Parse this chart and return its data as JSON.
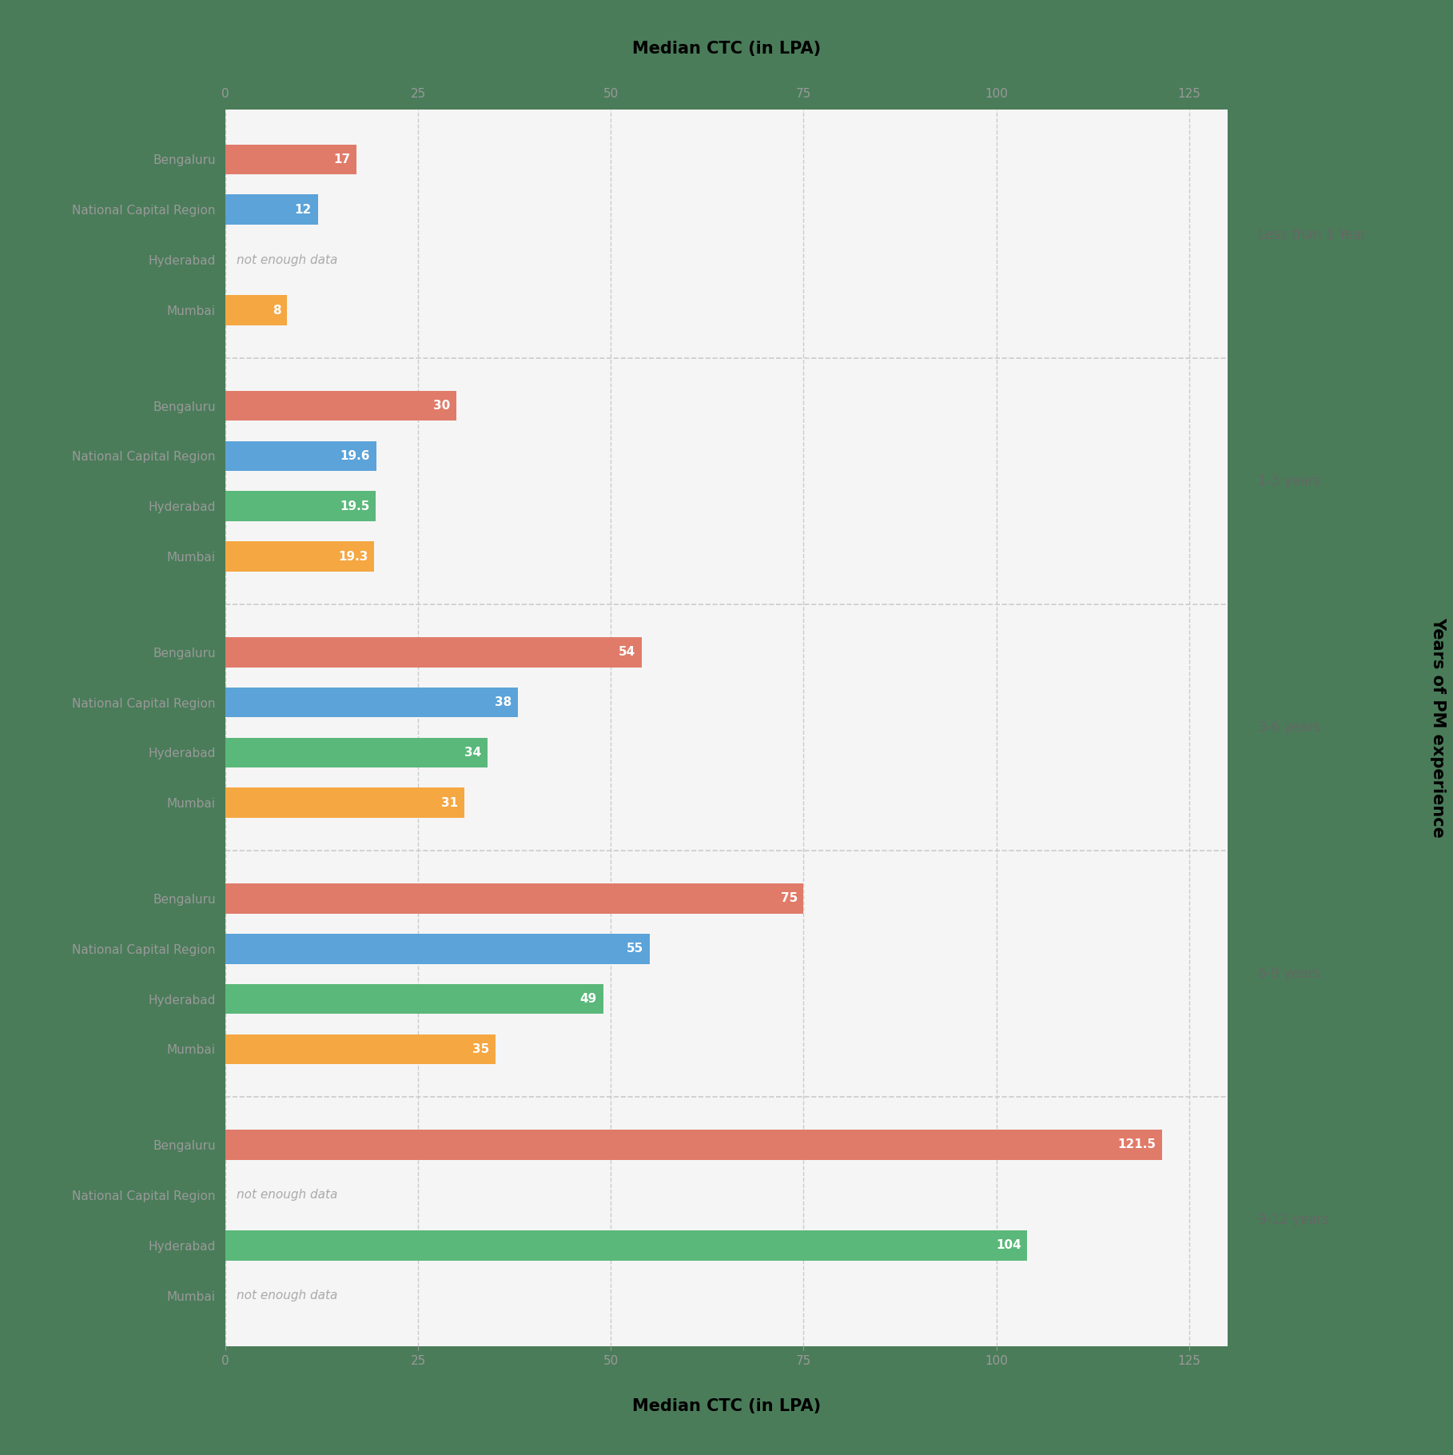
{
  "title_top": "Median CTC (in LPA)",
  "title_bottom": "Median CTC (in LPA)",
  "ylabel": "Years of PM experience",
  "background_color": "#4a7c59",
  "plot_background": "#f5f5f5",
  "groups": [
    {
      "label": "Less than 1 Year",
      "cities": [
        "Bengaluru",
        "National Capital Region",
        "Hyderabad",
        "Mumbai"
      ],
      "values": [
        17,
        12,
        null,
        8
      ],
      "colors": [
        "#e07b6a",
        "#5ba3d9",
        null,
        "#f5a742"
      ]
    },
    {
      "label": "1-3 years",
      "cities": [
        "Bengaluru",
        "National Capital Region",
        "Hyderabad",
        "Mumbai"
      ],
      "values": [
        30,
        19.6,
        19.5,
        19.3
      ],
      "colors": [
        "#e07b6a",
        "#5ba3d9",
        "#5ab87a",
        "#f5a742"
      ]
    },
    {
      "label": "3-6 years",
      "cities": [
        "Bengaluru",
        "National Capital Region",
        "Hyderabad",
        "Mumbai"
      ],
      "values": [
        54,
        38,
        34,
        31
      ],
      "colors": [
        "#e07b6a",
        "#5ba3d9",
        "#5ab87a",
        "#f5a742"
      ]
    },
    {
      "label": "6-9 years",
      "cities": [
        "Bengaluru",
        "National Capital Region",
        "Hyderabad",
        "Mumbai"
      ],
      "values": [
        75,
        55,
        49,
        35
      ],
      "colors": [
        "#e07b6a",
        "#5ba3d9",
        "#5ab87a",
        "#f5a742"
      ]
    },
    {
      "label": "9-12 years",
      "cities": [
        "Bengaluru",
        "National Capital Region",
        "Hyderabad",
        "Mumbai"
      ],
      "values": [
        121.5,
        null,
        104,
        null
      ],
      "colors": [
        "#e07b6a",
        null,
        "#5ab87a",
        null
      ]
    }
  ],
  "xlim": [
    0,
    130
  ],
  "xticks": [
    0,
    25,
    50,
    75,
    100,
    125
  ],
  "bar_height": 0.6,
  "no_data_text": "not enough data",
  "no_data_color": "#aaaaaa",
  "label_fontsize": 11,
  "value_fontsize": 11,
  "tick_fontsize": 11,
  "group_label_fontsize": 12,
  "title_fontsize": 15,
  "ylabel_fontsize": 15,
  "divider_color": "#cccccc",
  "grid_color": "#cccccc",
  "bar_value_color": "#ffffff"
}
